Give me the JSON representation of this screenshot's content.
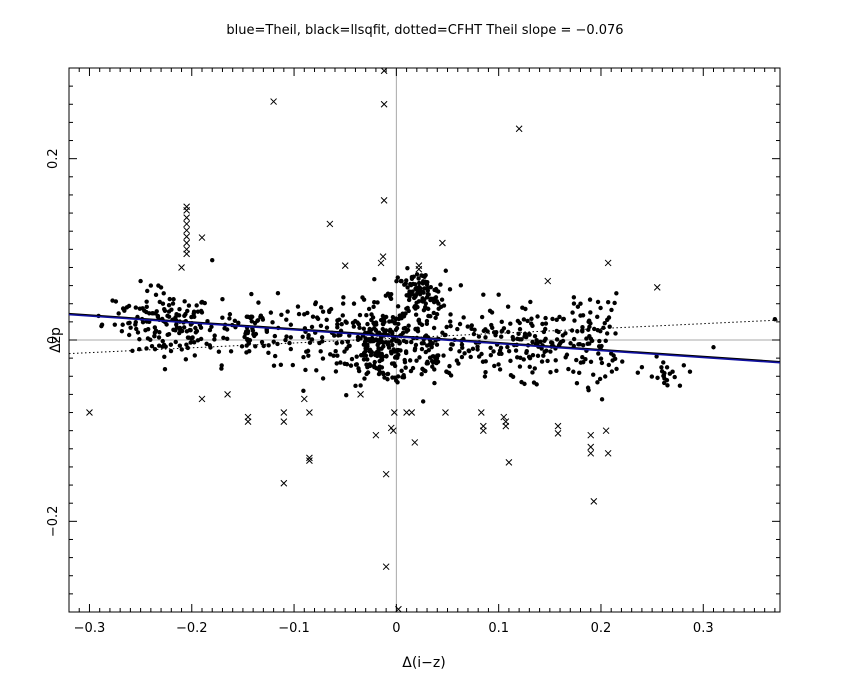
{
  "chart_data": {
    "type": "scatter",
    "title": "blue=Theil, black=llsqfit, dotted=CFHT   Theil slope = −0.076",
    "xlabel": "Δ(i−z)",
    "ylabel": "Δzp",
    "xlim": [
      -0.32,
      0.375
    ],
    "ylim": [
      -0.3,
      0.3
    ],
    "x_ticks": [
      -0.3,
      -0.2,
      -0.1,
      0,
      0.1,
      0.2,
      0.3
    ],
    "x_tick_labels": [
      "−0.3",
      "−0.2",
      "−0.1",
      "0",
      "0.1",
      "0.2",
      "0.3"
    ],
    "y_ticks": [
      -0.2,
      0,
      0.2
    ],
    "y_tick_labels": [
      "−0.2",
      "0",
      "0.2"
    ],
    "zero_lines": true,
    "colors": {
      "theil": "#1010a0",
      "llsqfit": "#000000",
      "cfht": "#000000"
    },
    "lines": [
      {
        "name": "Theil",
        "style": "solid",
        "color": "#1010a0",
        "x": [
          -0.32,
          0.375
        ],
        "y": [
          0.028,
          -0.025
        ]
      },
      {
        "name": "llsqfit",
        "style": "solid",
        "color": "#000000",
        "x": [
          -0.32,
          0.375
        ],
        "y": [
          0.029,
          -0.024
        ]
      },
      {
        "name": "CFHT",
        "style": "dotted",
        "color": "#000000",
        "x": [
          -0.32,
          0.375
        ],
        "y": [
          -0.015,
          0.022
        ]
      }
    ],
    "outliers_x": [
      [
        -0.3,
        -0.08
      ],
      [
        -0.12,
        0.263
      ],
      [
        -0.205,
        0.147
      ],
      [
        -0.205,
        0.143
      ],
      [
        -0.205,
        0.135
      ],
      [
        -0.205,
        0.128
      ],
      [
        -0.205,
        0.121
      ],
      [
        -0.205,
        0.114
      ],
      [
        -0.205,
        0.107
      ],
      [
        -0.205,
        0.1
      ],
      [
        -0.205,
        0.095
      ],
      [
        -0.19,
        0.113
      ],
      [
        -0.21,
        0.08
      ],
      [
        -0.19,
        -0.065
      ],
      [
        -0.165,
        -0.06
      ],
      [
        -0.145,
        -0.085
      ],
      [
        -0.145,
        -0.09
      ],
      [
        -0.11,
        -0.08
      ],
      [
        -0.11,
        -0.09
      ],
      [
        -0.11,
        -0.158
      ],
      [
        -0.09,
        -0.065
      ],
      [
        -0.085,
        -0.08
      ],
      [
        -0.085,
        -0.13
      ],
      [
        -0.085,
        -0.133
      ],
      [
        -0.065,
        0.128
      ],
      [
        -0.05,
        0.082
      ],
      [
        -0.035,
        -0.06
      ],
      [
        -0.02,
        -0.105
      ],
      [
        -0.015,
        0.085
      ],
      [
        -0.013,
        0.092
      ],
      [
        -0.012,
        0.297
      ],
      [
        -0.012,
        0.26
      ],
      [
        -0.012,
        0.154
      ],
      [
        -0.01,
        -0.148
      ],
      [
        -0.01,
        -0.25
      ],
      [
        -0.005,
        -0.097
      ],
      [
        -0.003,
        -0.1
      ],
      [
        -0.002,
        -0.08
      ],
      [
        0.002,
        -0.297
      ],
      [
        0.01,
        -0.08
      ],
      [
        0.015,
        -0.08
      ],
      [
        0.018,
        -0.113
      ],
      [
        0.022,
        0.078
      ],
      [
        0.022,
        0.082
      ],
      [
        0.045,
        0.107
      ],
      [
        0.048,
        -0.08
      ],
      [
        0.083,
        -0.08
      ],
      [
        0.085,
        -0.095
      ],
      [
        0.085,
        -0.1
      ],
      [
        0.105,
        -0.085
      ],
      [
        0.107,
        -0.09
      ],
      [
        0.107,
        -0.095
      ],
      [
        0.11,
        -0.135
      ],
      [
        0.12,
        0.233
      ],
      [
        0.148,
        0.065
      ],
      [
        0.158,
        -0.095
      ],
      [
        0.158,
        -0.103
      ],
      [
        0.19,
        -0.105
      ],
      [
        0.19,
        -0.118
      ],
      [
        0.19,
        -0.125
      ],
      [
        0.193,
        -0.178
      ],
      [
        0.205,
        -0.1
      ],
      [
        0.207,
        -0.125
      ],
      [
        0.207,
        0.085
      ],
      [
        0.255,
        0.058
      ]
    ],
    "clusters": [
      {
        "cx": -0.22,
        "cy": 0.015,
        "sx": 0.02,
        "sy": 0.018,
        "n": 130
      },
      {
        "cx": -0.27,
        "cy": 0.03,
        "sx": 0.02,
        "sy": 0.012,
        "n": 20
      },
      {
        "cx": -0.14,
        "cy": 0.01,
        "sx": 0.03,
        "sy": 0.018,
        "n": 90
      },
      {
        "cx": -0.06,
        "cy": 0.005,
        "sx": 0.03,
        "sy": 0.018,
        "n": 90
      },
      {
        "cx": -0.015,
        "cy": -0.005,
        "sx": 0.015,
        "sy": 0.022,
        "n": 180
      },
      {
        "cx": 0.022,
        "cy": 0.05,
        "sx": 0.013,
        "sy": 0.013,
        "n": 110
      },
      {
        "cx": 0.03,
        "cy": -0.005,
        "sx": 0.02,
        "sy": 0.022,
        "n": 110
      },
      {
        "cx": 0.09,
        "cy": -0.01,
        "sx": 0.03,
        "sy": 0.02,
        "n": 90
      },
      {
        "cx": 0.15,
        "cy": 0.0,
        "sx": 0.028,
        "sy": 0.022,
        "n": 90
      },
      {
        "cx": 0.195,
        "cy": 0.0,
        "sx": 0.012,
        "sy": 0.025,
        "n": 60
      },
      {
        "cx": 0.26,
        "cy": -0.04,
        "sx": 0.008,
        "sy": 0.01,
        "n": 18
      }
    ],
    "extra_points": [
      [
        -0.34,
        0.03
      ],
      [
        0.287,
        -0.035
      ],
      [
        0.31,
        -0.008
      ],
      [
        0.37,
        0.023
      ],
      [
        0.24,
        -0.03
      ],
      [
        0.265,
        -0.05
      ],
      [
        0.27,
        -0.035
      ],
      [
        0.21,
        -0.015
      ],
      [
        -0.25,
        0.065
      ],
      [
        -0.24,
        0.06
      ],
      [
        -0.23,
        0.058
      ],
      [
        -0.18,
        0.088
      ],
      [
        -0.17,
        0.045
      ],
      [
        0.085,
        0.05
      ],
      [
        0.1,
        0.05
      ],
      [
        0.18,
        0.04
      ]
    ]
  }
}
